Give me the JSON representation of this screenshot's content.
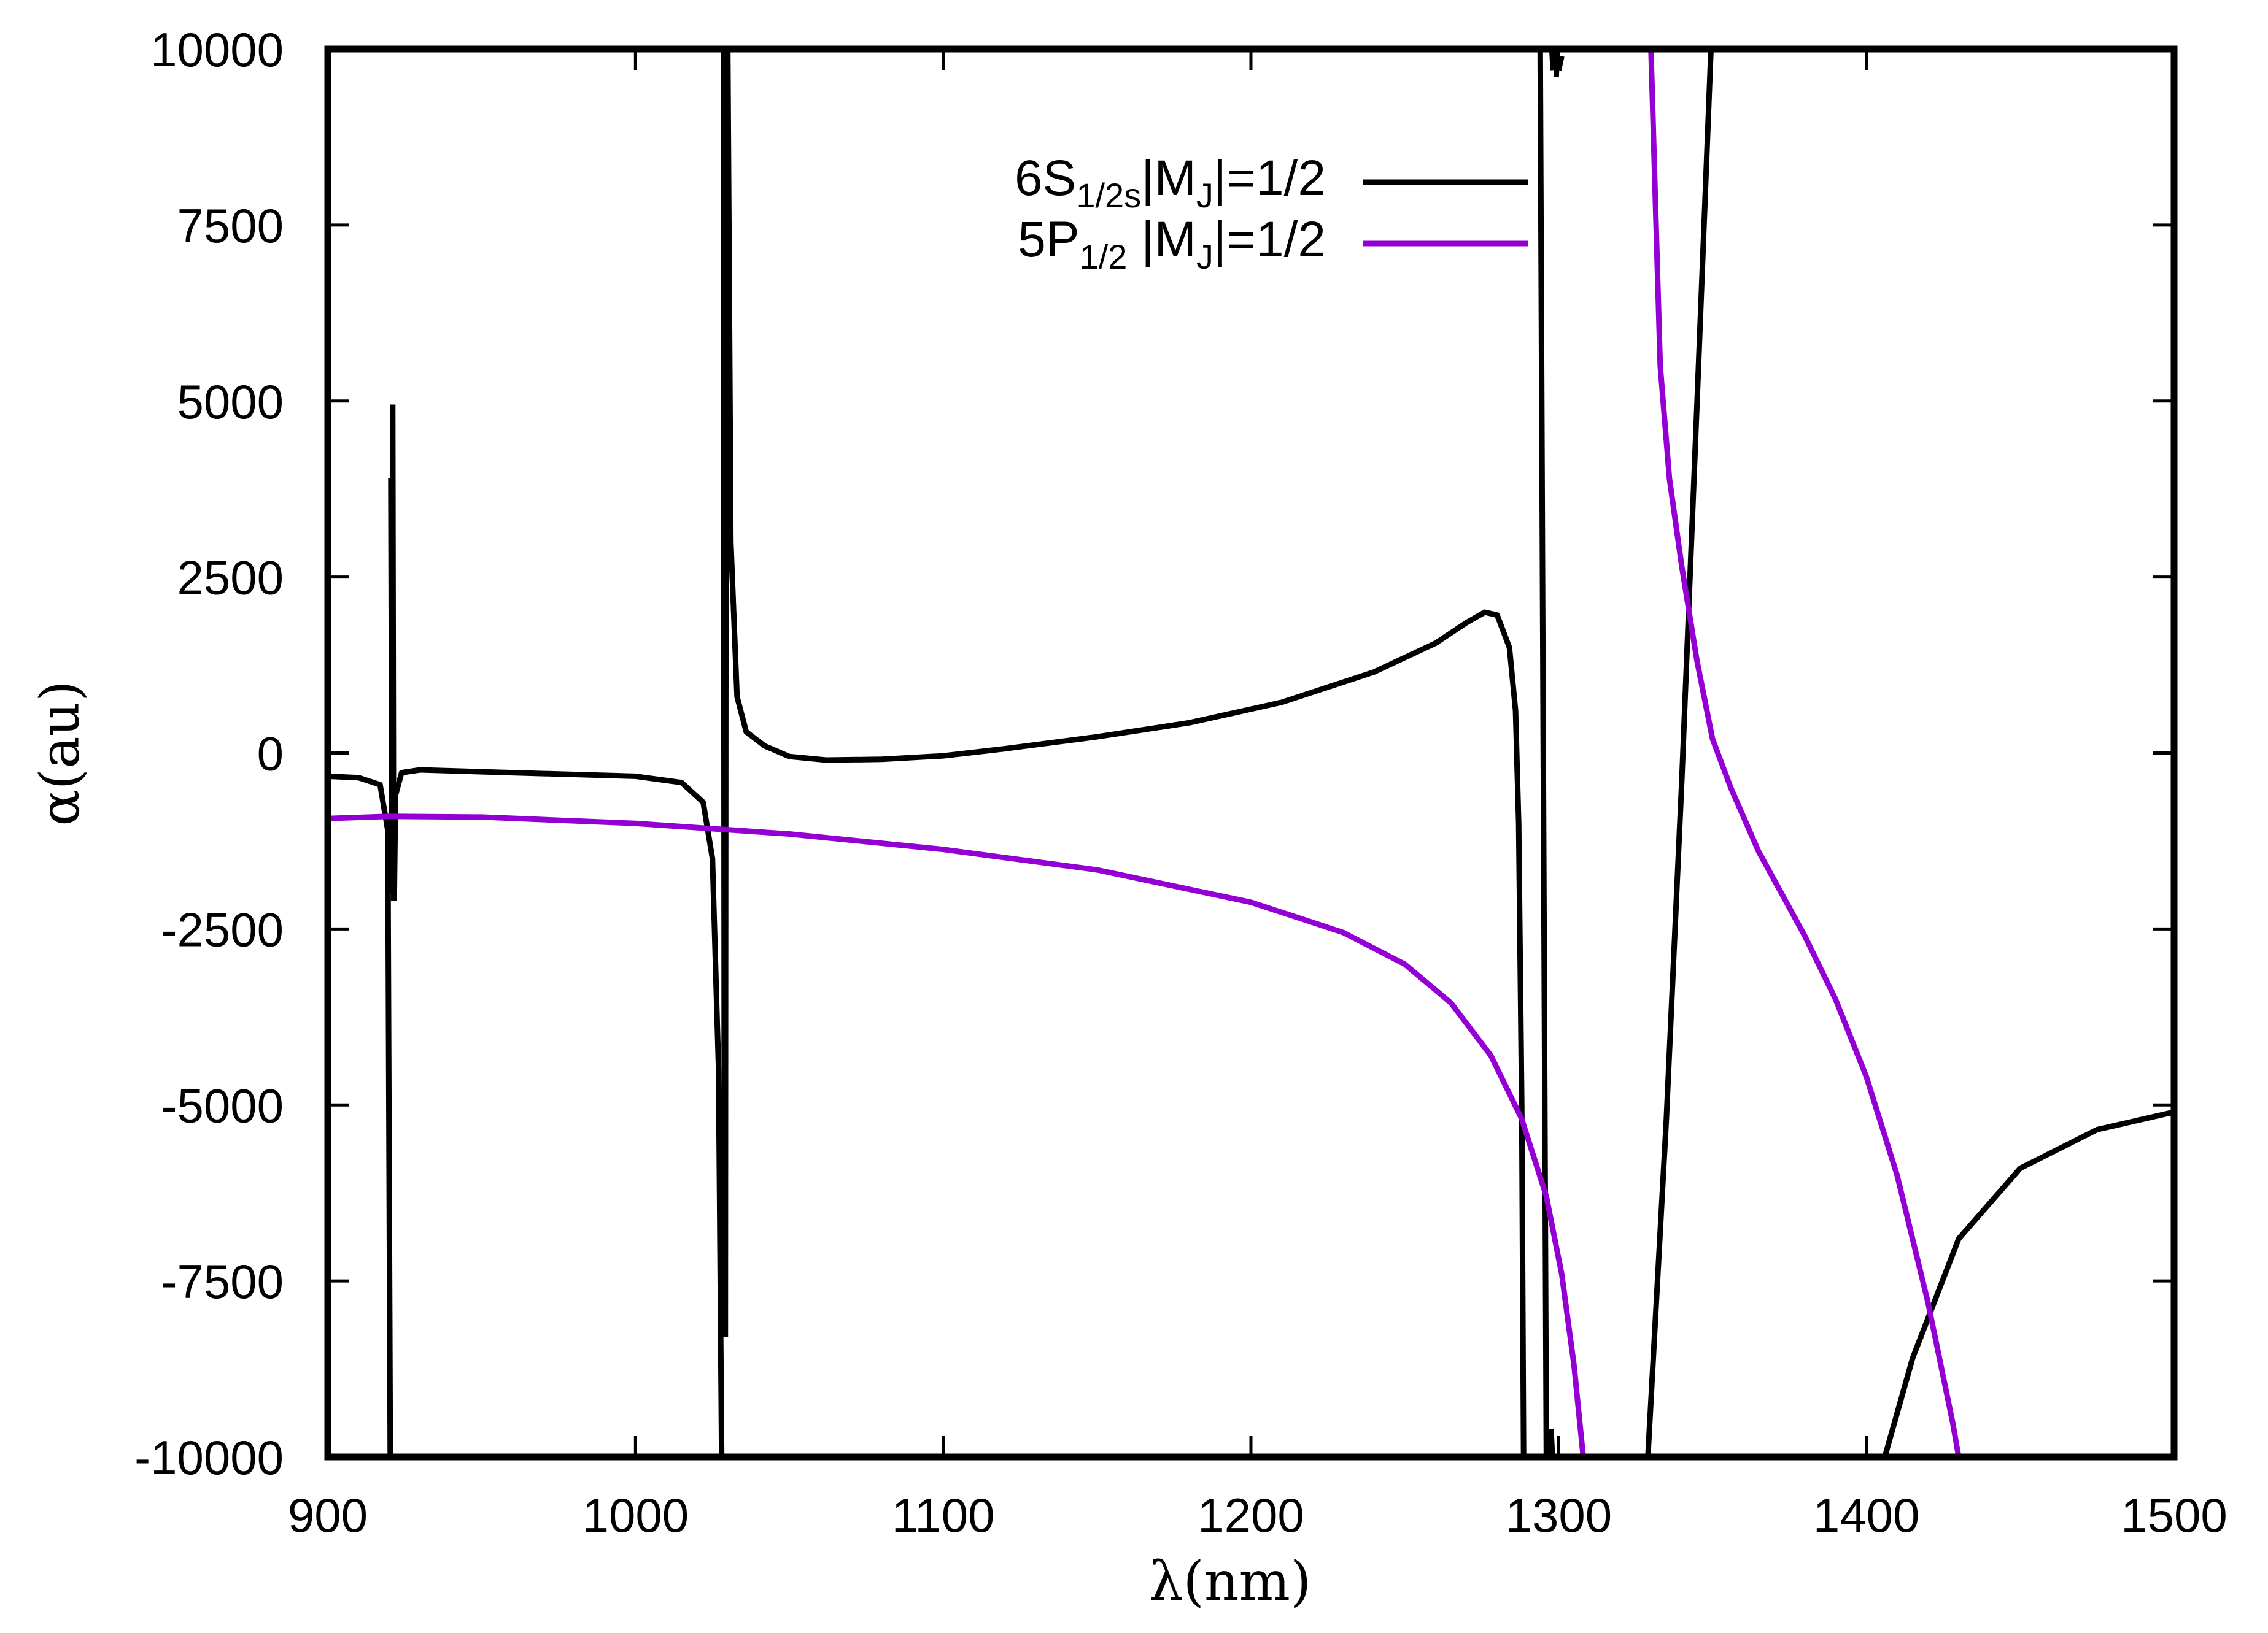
{
  "chart_data": {
    "type": "line",
    "title": "",
    "xlabel": "λ(nm)",
    "ylabel": "α(au)",
    "xlim": [
      900,
      1500
    ],
    "ylim": [
      -10000,
      10000
    ],
    "xticks": [
      900,
      1000,
      1100,
      1200,
      1300,
      1400,
      1500
    ],
    "yticks": [
      -10000,
      -7500,
      -5000,
      -2500,
      0,
      2500,
      5000,
      7500,
      10000
    ],
    "legend_position": "top-right",
    "series": [
      {
        "name": "6S1/2s|MJ|=1/2",
        "legend": {
          "base": "6S",
          "sub1": "1/2s",
          "mid": "|M",
          "sub2": "J",
          "tail": "|=1/2"
        },
        "color": "#000000",
        "segments": [
          [
            [
              900,
              -330
            ],
            [
              910,
              -350
            ],
            [
              917,
              -450
            ],
            [
              919.5,
              -1100
            ],
            [
              920.3,
              -10000
            ]
          ],
          [
            [
              920.5,
              3900
            ],
            [
              920.9,
              -2000
            ]
          ],
          [
            [
              921.1,
              4950
            ],
            [
              921.4,
              -2100
            ]
          ],
          [
            [
              921.6,
              -2100
            ],
            [
              922,
              -600
            ],
            [
              924,
              -280
            ],
            [
              930,
              -240
            ],
            [
              960,
              -280
            ],
            [
              1000,
              -330
            ],
            [
              1015,
              -420
            ],
            [
              1022,
              -700
            ],
            [
              1025,
              -1500
            ],
            [
              1027,
              -4500
            ],
            [
              1028,
              -10000
            ]
          ],
          [
            [
              1028.6,
              10000
            ],
            [
              1028.9,
              -8300
            ]
          ],
          [
            [
              1029.2,
              -8300
            ],
            [
              1029.5,
              10000
            ]
          ],
          [
            [
              1030,
              10000
            ],
            [
              1031,
              3000
            ],
            [
              1033,
              800
            ],
            [
              1036,
              300
            ],
            [
              1042,
              100
            ],
            [
              1050,
              -50
            ],
            [
              1062,
              -100
            ],
            [
              1080,
              -90
            ],
            [
              1100,
              -40
            ],
            [
              1120,
              60
            ],
            [
              1150,
              230
            ],
            [
              1180,
              430
            ],
            [
              1210,
              720
            ],
            [
              1240,
              1150
            ],
            [
              1260,
              1560
            ],
            [
              1270,
              1850
            ],
            [
              1276,
              2000
            ],
            [
              1280,
              1960
            ],
            [
              1284,
              1500
            ],
            [
              1286,
              600
            ],
            [
              1287,
              -1000
            ],
            [
              1288,
              -5000
            ],
            [
              1288.6,
              -10000
            ]
          ],
          [
            [
              1294,
              10000
            ],
            [
              1296,
              -10000
            ]
          ],
          [
            [
              1296.5,
              -10000
            ],
            [
              1297,
              -9700
            ]
          ],
          [
            [
              1297.5,
              -9600
            ],
            [
              1298,
              -10000
            ]
          ],
          [
            [
              1297.8,
              10000
            ],
            [
              1298.2,
              9700
            ]
          ],
          [
            [
              1299.2,
              9600
            ],
            [
              1299.6,
              10000
            ]
          ],
          [
            [
              1300,
              9700
            ],
            [
              1301,
              9900
            ]
          ],
          [
            [
              1329,
              -10000
            ],
            [
              1335,
              -5200
            ],
            [
              1340,
              -400
            ],
            [
              1345,
              5000
            ],
            [
              1349.5,
              10000
            ]
          ],
          [
            [
              1406,
              -10000
            ],
            [
              1415,
              -8600
            ],
            [
              1430,
              -6900
            ],
            [
              1450,
              -5900
            ],
            [
              1475,
              -5350
            ],
            [
              1500,
              -5100
            ]
          ]
        ]
      },
      {
        "name": "5P1/2 |MJ|=1/2",
        "legend": {
          "base": "5P",
          "sub1": "1/2",
          "mid": " |M",
          "sub2": "J",
          "tail": "|=1/2"
        },
        "color": "#9400D3",
        "segments": [
          [
            [
              900,
              -930
            ],
            [
              920,
              -900
            ],
            [
              950,
              -910
            ],
            [
              1000,
              -1000
            ],
            [
              1050,
              -1150
            ],
            [
              1100,
              -1370
            ],
            [
              1150,
              -1660
            ],
            [
              1200,
              -2120
            ],
            [
              1230,
              -2550
            ],
            [
              1250,
              -3000
            ],
            [
              1265,
              -3550
            ],
            [
              1278,
              -4300
            ],
            [
              1288,
              -5200
            ],
            [
              1296,
              -6300
            ],
            [
              1301,
              -7400
            ],
            [
              1305,
              -8700
            ],
            [
              1308,
              -10000
            ]
          ],
          [
            [
              1330,
              10000
            ],
            [
              1333,
              5500
            ],
            [
              1336,
              3900
            ],
            [
              1340,
              2650
            ],
            [
              1345,
              1300
            ],
            [
              1350,
              200
            ],
            [
              1356,
              -500
            ],
            [
              1365,
              -1400
            ],
            [
              1380,
              -2600
            ],
            [
              1390,
              -3500
            ],
            [
              1400,
              -4600
            ],
            [
              1410,
              -6000
            ],
            [
              1420,
              -7800
            ],
            [
              1428,
              -9500
            ],
            [
              1430,
              -10000
            ]
          ]
        ]
      }
    ]
  }
}
